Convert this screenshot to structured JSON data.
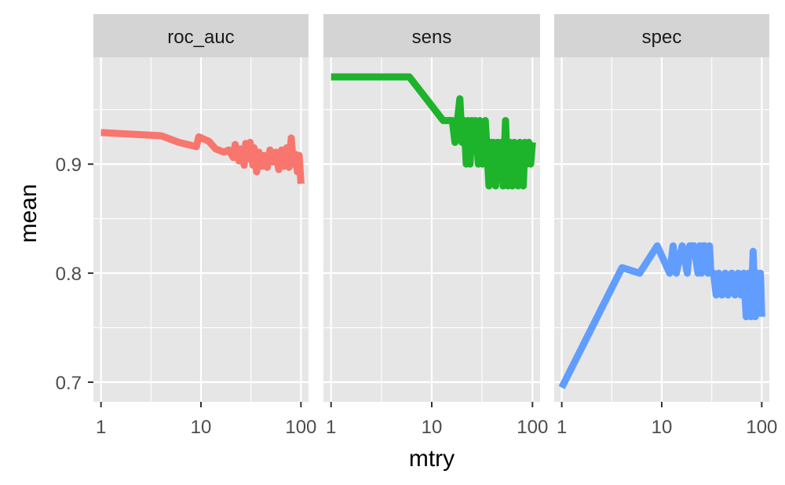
{
  "chart_data": {
    "type": "line",
    "xlabel": "mtry",
    "ylabel": "mean",
    "x_scale": "log10",
    "xlim": [
      0.84,
      119
    ],
    "ylim": [
      0.682,
      0.998
    ],
    "x_ticks": [
      1,
      10,
      100
    ],
    "x_tick_labels": [
      "1",
      "10",
      "100"
    ],
    "y_ticks": [
      0.7,
      0.8,
      0.9
    ],
    "y_tick_labels": [
      "0.7",
      "0.8",
      "0.9"
    ],
    "grid": true,
    "legend": "none",
    "colors": {
      "panel_bg": "#e6e6e6",
      "strip_bg": "#d4d4d4",
      "grid": "#ffffff"
    },
    "facets": [
      {
        "label": "roc_auc",
        "color": "#f8766d",
        "x": [
          1,
          4,
          6,
          9,
          9.5,
          12,
          14,
          17,
          19,
          21,
          22,
          24,
          25,
          27,
          28,
          30,
          31,
          33,
          34,
          36,
          38,
          41,
          43,
          46,
          49,
          52,
          56,
          60,
          64,
          68,
          72,
          76,
          80,
          84,
          88,
          92,
          96,
          100
        ],
        "y": [
          0.929,
          0.926,
          0.92,
          0.916,
          0.925,
          0.921,
          0.914,
          0.911,
          0.913,
          0.906,
          0.918,
          0.903,
          0.914,
          0.899,
          0.919,
          0.905,
          0.92,
          0.899,
          0.915,
          0.893,
          0.911,
          0.898,
          0.908,
          0.897,
          0.913,
          0.902,
          0.911,
          0.895,
          0.913,
          0.898,
          0.915,
          0.897,
          0.924,
          0.9,
          0.909,
          0.893,
          0.908,
          0.882
        ]
      },
      {
        "label": "sens",
        "color": "#1db32a",
        "x": [
          1,
          6,
          13,
          16,
          17,
          19,
          20,
          21,
          22,
          23,
          24,
          25,
          26,
          27,
          28,
          29,
          30,
          31,
          32,
          34,
          35,
          37,
          39,
          40,
          41,
          43,
          45,
          47,
          49,
          51,
          54,
          57,
          60,
          63,
          66,
          69,
          72,
          75,
          78,
          81,
          84,
          88,
          92,
          96,
          100
        ],
        "y": [
          0.98,
          0.98,
          0.94,
          0.94,
          0.92,
          0.96,
          0.92,
          0.94,
          0.9,
          0.94,
          0.9,
          0.94,
          0.92,
          0.94,
          0.92,
          0.9,
          0.94,
          0.92,
          0.9,
          0.94,
          0.92,
          0.88,
          0.92,
          0.9,
          0.92,
          0.88,
          0.92,
          0.9,
          0.92,
          0.88,
          0.94,
          0.88,
          0.92,
          0.88,
          0.92,
          0.9,
          0.88,
          0.92,
          0.9,
          0.88,
          0.92,
          0.9,
          0.92,
          0.9,
          0.92
        ]
      },
      {
        "label": "spec",
        "color": "#619cff",
        "x": [
          1,
          4,
          6,
          9,
          12,
          13,
          14,
          16,
          18,
          19,
          20,
          21,
          23,
          24,
          25,
          26,
          27,
          29,
          30,
          31,
          33,
          35,
          37,
          40,
          43,
          46,
          50,
          54,
          58,
          62,
          66,
          70,
          74,
          78,
          82,
          86,
          90,
          94,
          97,
          100
        ],
        "y": [
          0.695,
          0.805,
          0.8,
          0.825,
          0.8,
          0.825,
          0.8,
          0.825,
          0.8,
          0.825,
          0.825,
          0.825,
          0.8,
          0.825,
          0.8,
          0.825,
          0.825,
          0.8,
          0.825,
          0.8,
          0.8,
          0.78,
          0.8,
          0.78,
          0.8,
          0.78,
          0.8,
          0.78,
          0.8,
          0.78,
          0.8,
          0.76,
          0.8,
          0.76,
          0.82,
          0.76,
          0.8,
          0.77,
          0.8,
          0.76
        ]
      }
    ]
  }
}
